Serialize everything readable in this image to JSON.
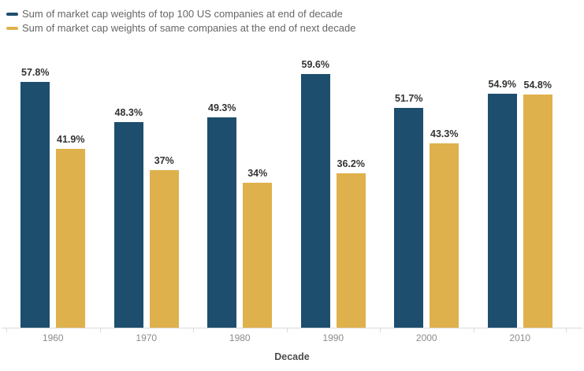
{
  "chart_data": {
    "type": "bar",
    "title": "",
    "categories": [
      "1960",
      "1970",
      "1980",
      "1990",
      "2000",
      "2010"
    ],
    "series": [
      {
        "name": "Sum of market cap weights of top 100 US companies at end of decade",
        "color": "#1d4e6e",
        "values": [
          57.8,
          48.3,
          49.3,
          59.6,
          51.7,
          54.9
        ],
        "labels": [
          "57.8%",
          "48.3%",
          "49.3%",
          "59.6%",
          "51.7%",
          "54.9%"
        ]
      },
      {
        "name": "Sum of market cap weights of same companies at the end of next decade",
        "color": "#dfb14c",
        "values": [
          41.9,
          37,
          34,
          36.2,
          43.3,
          54.8
        ],
        "labels": [
          "41.9%",
          "37%",
          "34%",
          "36.2%",
          "43.3%",
          "54.8%"
        ]
      }
    ],
    "xlabel": "Decade",
    "ylabel": "",
    "ylim": [
      0,
      64
    ],
    "grid": false,
    "legend_position": "top-left",
    "data_labels": true
  },
  "colors": {
    "series1": "#1d4e6e",
    "series2": "#dfb14c",
    "axis_line": "#d9d9d9",
    "tick_label": "#8c8c8c",
    "data_label": "#333333",
    "legend_text": "#666666",
    "xlabel_color": "#4d4d4d",
    "background": "#ffffff"
  }
}
